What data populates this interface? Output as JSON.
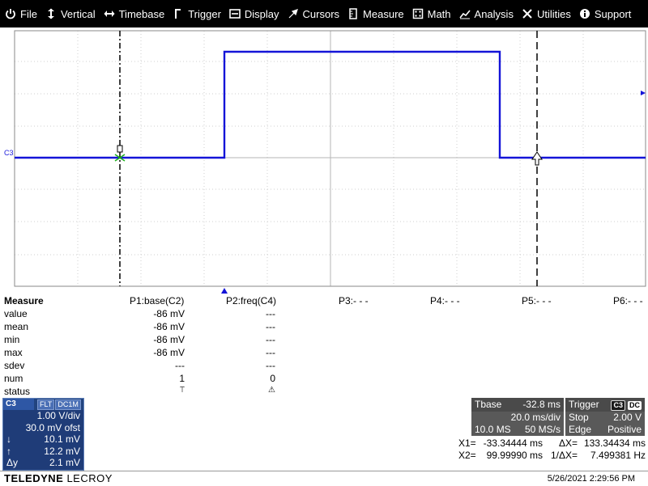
{
  "menu": [
    {
      "label": "File",
      "icon": "power-icon"
    },
    {
      "label": "Vertical",
      "icon": "vertical-arrows-icon"
    },
    {
      "label": "Timebase",
      "icon": "horizontal-arrows-icon"
    },
    {
      "label": "Trigger",
      "icon": "trigger-edge-icon"
    },
    {
      "label": "Display",
      "icon": "display-icon"
    },
    {
      "label": "Cursors",
      "icon": "cursor-icon"
    },
    {
      "label": "Measure",
      "icon": "measure-icon"
    },
    {
      "label": "Math",
      "icon": "calculator-icon"
    },
    {
      "label": "Analysis",
      "icon": "chart-icon"
    },
    {
      "label": "Utilities",
      "icon": "tools-icon"
    },
    {
      "label": "Support",
      "icon": "info-icon"
    }
  ],
  "channel_label": "C3",
  "measure": {
    "header": {
      "title": "Measure",
      "p1": "P1:base(C2)",
      "p2": "P2:freq(C4)",
      "p3": "P3:- - -",
      "p4": "P4:- - -",
      "p5": "P5:- - -",
      "p6": "P6:- - -"
    },
    "rows": [
      {
        "label": "value",
        "p1": "-86 mV",
        "p2": "---"
      },
      {
        "label": "mean",
        "p1": "-86 mV",
        "p2": "---"
      },
      {
        "label": "min",
        "p1": "-86 mV",
        "p2": "---"
      },
      {
        "label": "max",
        "p1": "-86 mV",
        "p2": "---"
      },
      {
        "label": "sdev",
        "p1": "---",
        "p2": "---"
      },
      {
        "label": "num",
        "p1": "1",
        "p2": "0"
      },
      {
        "label": "status",
        "p1": "⍡",
        "p2": "⚠"
      }
    ]
  },
  "c3": {
    "name": "C3",
    "tag1": "FLT",
    "tag2": "DC1M",
    "vdiv": "1.00 V/div",
    "offset": "30.0 mV ofst",
    "down_label": "↓",
    "down_value": "10.1 mV",
    "up_label": "↑",
    "up_value": "12.2 mV",
    "dy_label": "Δy",
    "dy_value": "2.1 mV"
  },
  "timebase": {
    "title": "Tbase",
    "delay": "-32.8 ms",
    "div": "20.0 ms/div",
    "samples": "10.0 MS",
    "rate": "50 MS/s"
  },
  "trigger": {
    "title": "Trigger",
    "source": "C3",
    "coupling": "DC",
    "mode": "Stop",
    "level": "2.00 V",
    "type": "Edge",
    "slope": "Positive"
  },
  "cursors": {
    "x1_label": "X1=",
    "x1": "-33.34444 ms",
    "dx_label": "ΔX=",
    "dx": "133.34434 ms",
    "x2_label": "X2=",
    "x2": "99.99990 ms",
    "invdx_label": "1/ΔX=",
    "invdx": "7.499381 Hz"
  },
  "footer": {
    "brand_bold": "TELEDYNE",
    "brand_rest": " LECROY",
    "datetime": "5/26/2021 2:29:56 PM"
  },
  "colors": {
    "trace": "#1414d8",
    "menubar": "#000000",
    "descriptor": "#1f3c78",
    "panel": "#595959"
  }
}
